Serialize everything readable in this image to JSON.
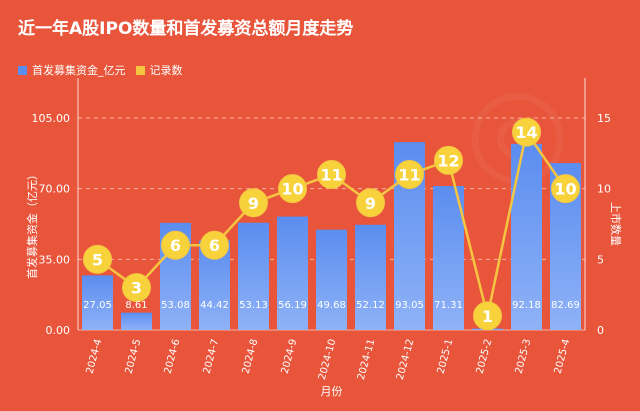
{
  "title": "近一年A股IPO数量和首发募资总额月度走势",
  "colors": {
    "background": "#e8553b",
    "bar": "#5b8def",
    "bar_light": "#8fb2f7",
    "line": "#f5c542",
    "marker": "#f7d23b"
  },
  "chart_data": {
    "type": "bar",
    "categories": [
      "2024-4",
      "2024-5",
      "2024-6",
      "2024-7",
      "2024-8",
      "2024-9",
      "2024-10",
      "2024-11",
      "2024-12",
      "2025-1",
      "2025-2",
      "2025-3",
      "2025-4"
    ],
    "series": [
      {
        "name": "首发募集资金_亿元",
        "type": "bar",
        "axis": "left",
        "values": [
          27.05,
          8.61,
          53.08,
          44.42,
          53.13,
          56.19,
          49.68,
          52.12,
          93.05,
          71.31,
          0.7,
          92.18,
          82.69
        ],
        "labels": [
          "27.05",
          "8.61",
          "53.08",
          "44.42",
          "53.13",
          "56.19",
          "49.68",
          "52.12",
          "93.05",
          "71.31",
          "",
          "92.18",
          "82.69"
        ]
      },
      {
        "name": "记录数",
        "type": "line",
        "axis": "right",
        "values": [
          5,
          3,
          6,
          6,
          9,
          10,
          11,
          9,
          11,
          12,
          1,
          14,
          10
        ]
      }
    ],
    "xlabel": "月份",
    "ylabel": "首发募集资金（亿元）",
    "y2label": "上市数量",
    "ylim": [
      0,
      105
    ],
    "yticks": [
      "0.00",
      "35.00",
      "70.00",
      "105.00"
    ],
    "y2lim": [
      0,
      15
    ],
    "y2ticks": [
      "0",
      "5",
      "10",
      "15"
    ],
    "grid": true,
    "legend": "top-left"
  }
}
